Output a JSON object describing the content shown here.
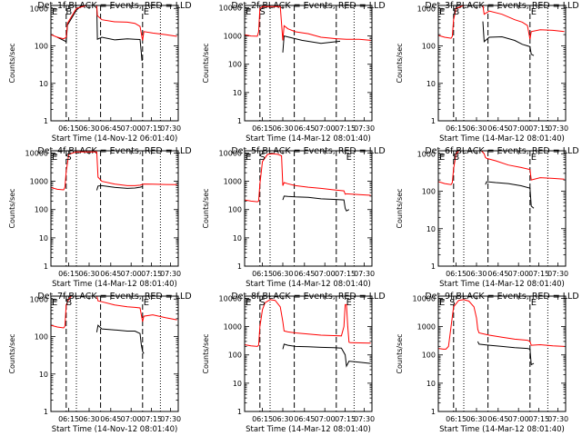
{
  "figure": {
    "background": "#ffffff"
  },
  "style": {
    "events_color": "#000000",
    "lld_color": "#ff0000"
  },
  "chart_data": [
    {
      "type": "line",
      "title": "Det_1f BLACK = Events, RED = LLD",
      "xlabel": "Start Time (14-Nov-12 06:01:40)",
      "ylabel": "Counts/sec",
      "y_scale": "log",
      "ylim": [
        1,
        1200
      ],
      "xlim_minutes": [
        0,
        100
      ],
      "x_ticks": [
        "06:15",
        "06:30",
        "06:45",
        "07:00",
        "07:15",
        "07:30"
      ],
      "y_ticks": [
        "1",
        "10",
        "100",
        "1000"
      ],
      "markers": [
        {
          "label": "E",
          "x": 0
        },
        {
          "label": "B",
          "x": 11
        },
        {
          "label": "E",
          "x": 72
        }
      ],
      "series": [
        {
          "name": "Events",
          "x": [
            5,
            12,
            13,
            20,
            24,
            26,
            28,
            36,
            36.5,
            40,
            50,
            60,
            66,
            70,
            71,
            71.5,
            72
          ],
          "values": [
            170,
            130,
            360,
            900,
            1200,
            1200,
            1200,
            1200,
            150,
            170,
            145,
            155,
            150,
            148,
            65,
            40,
            45
          ]
        },
        {
          "name": "LLD",
          "x": [
            0,
            5,
            10,
            12,
            13,
            20,
            28,
            36,
            36.5,
            40,
            50,
            60,
            66,
            70,
            72,
            73,
            80,
            90,
            99
          ],
          "values": [
            200,
            170,
            155,
            170,
            400,
            1000,
            1200,
            1200,
            640,
            500,
            440,
            430,
            400,
            330,
            140,
            240,
            220,
            200,
            180
          ]
        }
      ]
    },
    {
      "type": "line",
      "title": "Det_2f BLACK = Events, RED = LLD",
      "xlabel": "Start Time (14-Mar-12 08:01:40)",
      "ylabel": "Counts/sec",
      "y_scale": "log",
      "ylim": [
        1,
        12000
      ],
      "xlim_minutes": [
        0,
        100
      ],
      "x_ticks": [
        "06:15",
        "06:30",
        "06:45",
        "07:00",
        "07:15",
        "07:30"
      ],
      "y_ticks": [
        "1",
        "10",
        "100",
        "1000",
        "10000"
      ],
      "markers": [
        {
          "label": "E",
          "x": 0
        },
        {
          "label": "S",
          "x": 11
        }
      ],
      "series": [
        {
          "name": "Events",
          "x": [
            30,
            31,
            35,
            45,
            60,
            75
          ],
          "values": [
            260,
            1000,
            900,
            700,
            550,
            650
          ]
        },
        {
          "name": "LLD",
          "x": [
            0,
            5,
            10,
            11,
            12,
            14,
            20,
            28,
            30,
            31,
            34,
            40,
            50,
            60,
            72,
            80,
            90,
            99
          ],
          "values": [
            1100,
            1000,
            980,
            1400,
            9500,
            11000,
            11000,
            11000,
            700,
            2300,
            1800,
            1400,
            1200,
            900,
            800,
            760,
            760,
            700
          ]
        }
      ]
    },
    {
      "type": "line",
      "title": "Det_3f BLACK = Events, RED = LLD",
      "xlabel": "Start Time (14-Mar-12 08:01:40)",
      "ylabel": "Counts/sec",
      "y_scale": "log",
      "ylim": [
        1,
        1200
      ],
      "xlim_minutes": [
        0,
        100
      ],
      "x_ticks": [
        "06:15",
        "06:30",
        "06:45",
        "07:00",
        "07:15",
        "07:30"
      ],
      "y_ticks": [
        "1",
        "10",
        "100",
        "1000"
      ],
      "markers": [
        {
          "label": "E",
          "x": 0
        },
        {
          "label": "B",
          "x": 11
        },
        {
          "label": "E",
          "x": 72
        }
      ],
      "series": [
        {
          "name": "Events",
          "x": [
            35,
            36,
            40,
            50,
            60,
            66,
            70,
            72,
            73,
            75
          ],
          "values": [
            450,
            130,
            170,
            175,
            140,
            110,
            100,
            95,
            60,
            55
          ]
        },
        {
          "name": "LLD",
          "x": [
            0,
            5,
            10,
            11,
            12,
            14,
            20,
            24,
            30,
            35,
            36,
            40,
            50,
            60,
            66,
            70,
            72,
            73,
            80,
            90,
            99
          ],
          "values": [
            190,
            170,
            160,
            180,
            500,
            1000,
            1200,
            1200,
            1200,
            1200,
            700,
            850,
            700,
            500,
            430,
            350,
            150,
            240,
            270,
            260,
            240
          ]
        }
      ]
    },
    {
      "type": "line",
      "title": "Det_4f BLACK = Events, RED = LLD",
      "xlabel": "Start Time (14-Mar-12 08:01:40)",
      "ylabel": "Counts/sec",
      "y_scale": "log",
      "ylim": [
        1,
        12000
      ],
      "xlim_minutes": [
        0,
        100
      ],
      "x_ticks": [
        "06:15",
        "06:30",
        "06:45",
        "07:00",
        "07:15",
        "07:30"
      ],
      "y_ticks": [
        "1",
        "10",
        "100",
        "1000",
        "10000"
      ],
      "markers": [
        {
          "label": "E",
          "x": 0
        },
        {
          "label": "S",
          "x": 11
        }
      ],
      "series": [
        {
          "name": "Events",
          "x": [
            36,
            37,
            40,
            50,
            60,
            66,
            70,
            72
          ],
          "values": [
            480,
            680,
            700,
            610,
            560,
            580,
            620,
            650
          ]
        },
        {
          "name": "LLD",
          "x": [
            0,
            5,
            10,
            11,
            12,
            14,
            20,
            28,
            34,
            36,
            37,
            40,
            50,
            60,
            66,
            70,
            72,
            73,
            80,
            90,
            99
          ],
          "values": [
            600,
            520,
            500,
            620,
            2200,
            9000,
            11000,
            11000,
            11000,
            11000,
            1400,
            1000,
            800,
            700,
            700,
            730,
            780,
            800,
            790,
            770,
            760
          ]
        }
      ]
    },
    {
      "type": "line",
      "title": "Det_5f BLACK = Events, RED = LLD",
      "xlabel": "Start Time (14-Mar-12 08:01:40)",
      "ylabel": "Counts/sec",
      "y_scale": "log",
      "ylim": [
        1,
        12000
      ],
      "xlim_minutes": [
        0,
        100
      ],
      "x_ticks": [
        "06:15",
        "06:30",
        "06:45",
        "07:00",
        "07:15",
        "07:30"
      ],
      "y_ticks": [
        "1",
        "10",
        "100",
        "1000",
        "10000"
      ],
      "markers": [
        {
          "label": "E",
          "x": 0
        },
        {
          "label": "S",
          "x": 11
        },
        {
          "label": "E",
          "x": 79
        }
      ],
      "series": [
        {
          "name": "Events",
          "x": [
            30,
            31,
            34,
            40,
            50,
            60,
            70,
            78,
            79,
            80,
            82
          ],
          "values": [
            220,
            300,
            290,
            280,
            270,
            240,
            230,
            220,
            110,
            90,
            100
          ]
        },
        {
          "name": "LLD",
          "x": [
            0,
            5,
            10,
            11,
            12,
            14,
            18,
            22,
            26,
            29,
            30,
            31,
            34,
            40,
            50,
            60,
            70,
            78,
            79,
            80,
            90,
            99
          ],
          "values": [
            220,
            200,
            190,
            200,
            800,
            5000,
            9000,
            9500,
            9000,
            8000,
            700,
            900,
            820,
            700,
            620,
            560,
            500,
            460,
            350,
            360,
            340,
            320
          ]
        }
      ]
    },
    {
      "type": "line",
      "title": "Det_6f BLACK = Events, RED = LLD",
      "xlabel": "Start Time (14-Mar-12 08:01:40)",
      "ylabel": "Counts/sec",
      "y_scale": "log",
      "ylim": [
        1,
        1200
      ],
      "xlim_minutes": [
        0,
        100
      ],
      "x_ticks": [
        "06:15",
        "06:30",
        "06:45",
        "07:00",
        "07:15",
        "07:30"
      ],
      "y_ticks": [
        "1",
        "10",
        "100",
        "1000"
      ],
      "markers": [
        {
          "label": "E",
          "x": 0
        },
        {
          "label": "B",
          "x": 11
        },
        {
          "label": "E",
          "x": 72
        }
      ],
      "series": [
        {
          "name": "Events",
          "x": [
            37,
            38,
            45,
            55,
            65,
            72,
            73,
            75
          ],
          "values": [
            150,
            180,
            170,
            160,
            140,
            120,
            40,
            35
          ]
        },
        {
          "name": "LLD",
          "x": [
            0,
            5,
            10,
            11,
            12,
            14,
            16,
            20,
            24,
            28,
            34,
            36,
            37,
            38,
            45,
            55,
            65,
            72,
            73,
            80,
            90,
            99
          ],
          "values": [
            180,
            160,
            150,
            170,
            400,
            1000,
            1200,
            1200,
            1200,
            1200,
            1200,
            1000,
            800,
            750,
            650,
            500,
            430,
            380,
            200,
            230,
            220,
            210
          ]
        }
      ]
    },
    {
      "type": "line",
      "title": "Det_7f BLACK = Events, RED = LLD",
      "xlabel": "Start Time (14-Nov-12 08:01:40)",
      "ylabel": "Counts/sec",
      "y_scale": "log",
      "ylim": [
        1,
        1200
      ],
      "xlim_minutes": [
        0,
        100
      ],
      "x_ticks": [
        "06:15",
        "06:30",
        "06:45",
        "07:00",
        "07:15",
        "07:30"
      ],
      "y_ticks": [
        "1",
        "10",
        "100",
        "1000"
      ],
      "markers": [
        {
          "label": "E",
          "x": 0
        },
        {
          "label": "B",
          "x": 11
        },
        {
          "label": "E",
          "x": 72
        }
      ],
      "series": [
        {
          "name": "Events",
          "x": [
            36,
            37,
            40,
            50,
            60,
            66,
            70,
            71,
            72,
            73
          ],
          "values": [
            130,
            200,
            160,
            150,
            140,
            140,
            120,
            60,
            40,
            35
          ]
        },
        {
          "name": "LLD",
          "x": [
            0,
            5,
            10,
            11,
            12,
            14,
            16,
            20,
            28,
            36,
            37,
            40,
            50,
            60,
            66,
            70,
            72,
            73,
            80,
            90,
            99
          ],
          "values": [
            200,
            180,
            170,
            190,
            700,
            1000,
            1200,
            1200,
            1200,
            1200,
            900,
            850,
            700,
            620,
            600,
            580,
            250,
            350,
            380,
            320,
            280
          ]
        }
      ]
    },
    {
      "type": "line",
      "title": "Det_8f BLACK = Events, RED = LLD",
      "xlabel": "Start Time (14-Mar-12 08:01:40)",
      "ylabel": "Counts/sec",
      "y_scale": "log",
      "ylim": [
        1,
        12000
      ],
      "xlim_minutes": [
        0,
        100
      ],
      "x_ticks": [
        "06:15",
        "06:30",
        "06:45",
        "07:00",
        "07:15",
        "07:30"
      ],
      "y_ticks": [
        "1",
        "10",
        "100",
        "1000",
        "10000"
      ],
      "markers": [
        {
          "label": "E",
          "x": 0
        },
        {
          "label": "S",
          "x": 11
        },
        {
          "label": "E",
          "x": 79
        }
      ],
      "series": [
        {
          "name": "Events",
          "x": [
            30,
            31,
            34,
            40,
            50,
            60,
            70,
            76,
            79,
            80,
            82,
            90,
            99
          ],
          "values": [
            160,
            240,
            220,
            200,
            195,
            185,
            180,
            175,
            100,
            40,
            60,
            55,
            50
          ]
        },
        {
          "name": "LLD",
          "x": [
            0,
            5,
            10,
            11,
            12,
            14,
            16,
            20,
            24,
            28,
            30,
            31,
            34,
            40,
            50,
            60,
            70,
            76,
            78,
            79,
            80,
            81,
            82,
            83,
            99
          ],
          "values": [
            230,
            210,
            200,
            220,
            1000,
            4000,
            7000,
            9000,
            8500,
            5000,
            1500,
            700,
            650,
            600,
            550,
            500,
            480,
            470,
            1000,
            6000,
            6000,
            1000,
            280,
            270,
            260
          ]
        }
      ]
    },
    {
      "type": "line",
      "title": "Det_9f BLACK = Events, RED = LLD",
      "xlabel": "Start Time (14-Mar-12 08:01:40)",
      "ylabel": "Counts/sec",
      "y_scale": "log",
      "ylim": [
        1,
        12000
      ],
      "xlim_minutes": [
        0,
        100
      ],
      "x_ticks": [
        "06:15",
        "06:30",
        "06:45",
        "07:00",
        "07:15",
        "07:30"
      ],
      "y_ticks": [
        "1",
        "10",
        "100",
        "1000",
        "10000"
      ],
      "markers": [
        {
          "label": "E",
          "x": 0
        },
        {
          "label": "S",
          "x": 8
        },
        {
          "label": "E",
          "x": 72
        }
      ],
      "series": [
        {
          "name": "Events",
          "x": [
            31,
            32,
            36,
            40,
            50,
            60,
            70,
            72,
            73,
            75
          ],
          "values": [
            300,
            240,
            230,
            220,
            200,
            180,
            170,
            160,
            45,
            50
          ]
        },
        {
          "name": "LLD",
          "x": [
            0,
            4,
            6,
            8,
            10,
            12,
            16,
            20,
            24,
            28,
            30,
            31,
            32,
            36,
            40,
            50,
            60,
            70,
            72,
            73,
            80,
            90,
            99
          ],
          "values": [
            170,
            160,
            160,
            200,
            1000,
            5000,
            8500,
            9000,
            8000,
            5000,
            2000,
            800,
            600,
            550,
            500,
            420,
            360,
            330,
            300,
            220,
            230,
            210,
            200
          ]
        }
      ]
    }
  ]
}
